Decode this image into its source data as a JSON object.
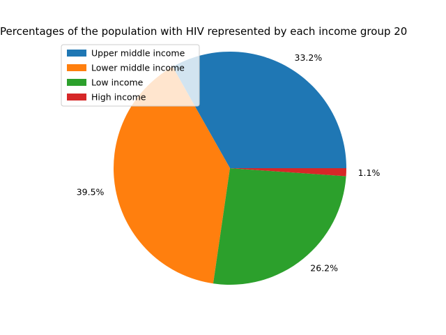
{
  "chart_data": {
    "type": "pie",
    "title": "Percentages of the population with HIV represented by each income group 20",
    "categories": [
      "Upper middle income",
      "Lower middle income",
      "Low income",
      "High income"
    ],
    "values": [
      33.2,
      39.5,
      26.2,
      1.1
    ],
    "labels": [
      "33.2%",
      "39.5%",
      "26.2%",
      "1.1%"
    ],
    "colors": [
      "#1f77b4",
      "#ff7f0e",
      "#2ca02c",
      "#d62728"
    ],
    "start_angle_deg": 0,
    "direction": "counterclockwise",
    "legend": {
      "placement": "upper-left",
      "entries": [
        "Upper middle income",
        "Lower middle income",
        "Low income",
        "High income"
      ]
    }
  }
}
